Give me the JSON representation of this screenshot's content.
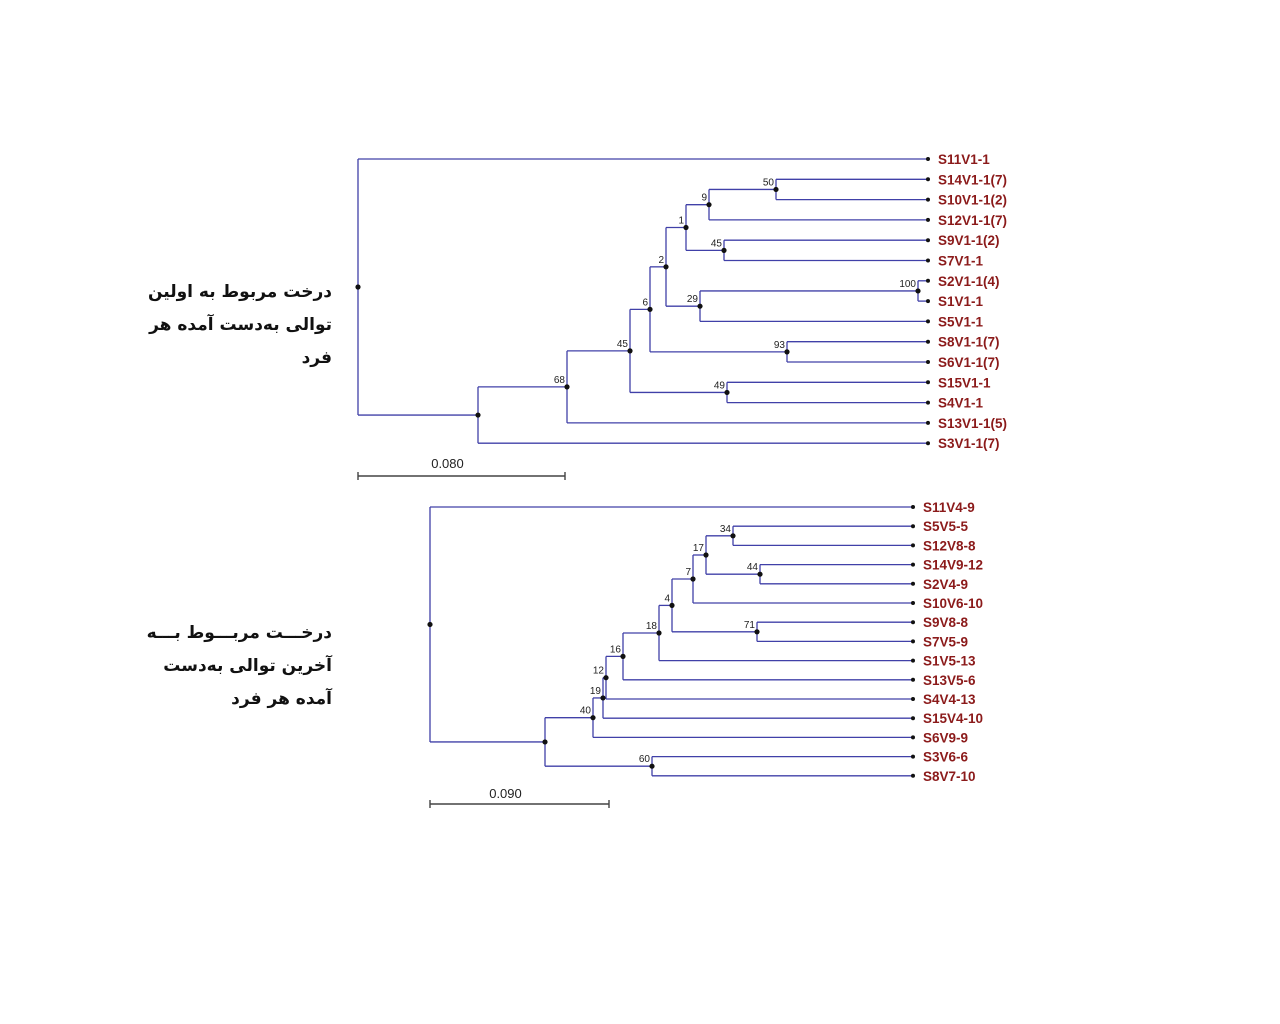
{
  "style": {
    "branch_color": "#4040a8",
    "leaf_label_color": "#8b1a1a",
    "node_color": "#111111",
    "scale_color": "#444444",
    "caption_color": "#111111"
  },
  "trees": [
    {
      "caption_lines": [
        "درخت مربوط به اولین",
        "توالی به‌دست آمده هر",
        "فرد"
      ],
      "scale_label": "0.080",
      "tree": {
        "children": [
          {
            "label": "S11V1-1"
          },
          {
            "children": [
              {
                "bootstrap": "68",
                "children": [
                  {
                    "bootstrap": "45",
                    "children": [
                      {
                        "bootstrap": "6",
                        "children": [
                          {
                            "bootstrap": "2",
                            "children": [
                              {
                                "bootstrap": "1",
                                "children": [
                                  {
                                    "bootstrap": "9",
                                    "children": [
                                      {
                                        "bootstrap": "50",
                                        "children": [
                                          {
                                            "label": "S14V1-1(7)"
                                          },
                                          {
                                            "label": "S10V1-1(2)"
                                          }
                                        ]
                                      },
                                      {
                                        "label": "S12V1-1(7)"
                                      }
                                    ]
                                  },
                                  {
                                    "bootstrap": "45",
                                    "children": [
                                      {
                                        "label": "S9V1-1(2)"
                                      },
                                      {
                                        "label": "S7V1-1"
                                      }
                                    ]
                                  }
                                ]
                              },
                              {
                                "bootstrap": "29",
                                "children": [
                                  {
                                    "bootstrap": "100",
                                    "children": [
                                      {
                                        "label": "S2V1-1(4)"
                                      },
                                      {
                                        "label": "S1V1-1"
                                      }
                                    ]
                                  },
                                  {
                                    "label": "S5V1-1"
                                  }
                                ]
                              }
                            ]
                          },
                          {
                            "bootstrap": "93",
                            "children": [
                              {
                                "label": "S8V1-1(7)"
                              },
                              {
                                "label": "S6V1-1(7)"
                              }
                            ]
                          }
                        ]
                      },
                      {
                        "bootstrap": "49",
                        "children": [
                          {
                            "label": "S15V1-1"
                          },
                          {
                            "label": "S4V1-1"
                          }
                        ]
                      }
                    ]
                  },
                  {
                    "label": "S13V1-1(5)"
                  }
                ]
              },
              {
                "label": "S3V1-1(7)"
              }
            ]
          }
        ]
      }
    },
    {
      "caption_lines": [
        "درخـــت مربـــوط بـــه",
        "آخرین  توالی  به‌دست",
        "آمده هر فرد"
      ],
      "scale_label": "0.090",
      "tree": {
        "children": [
          {
            "label": "S11V4-9"
          },
          {
            "children": [
              {
                "bootstrap": "40",
                "children": [
                  {
                    "bootstrap": "19",
                    "children": [
                      {
                        "bootstrap": "12",
                        "children": [
                          {
                            "bootstrap": "16",
                            "children": [
                              {
                                "bootstrap": "18",
                                "children": [
                                  {
                                    "bootstrap": "4",
                                    "children": [
                                      {
                                        "bootstrap": "7",
                                        "children": [
                                          {
                                            "bootstrap": "17",
                                            "children": [
                                              {
                                                "bootstrap": "34",
                                                "children": [
                                                  {
                                                    "label": "S5V5-5"
                                                  },
                                                  {
                                                    "label": "S12V8-8"
                                                  }
                                                ]
                                              },
                                              {
                                                "bootstrap": "44",
                                                "children": [
                                                  {
                                                    "label": "S14V9-12"
                                                  },
                                                  {
                                                    "label": "S2V4-9"
                                                  }
                                                ]
                                              }
                                            ]
                                          },
                                          {
                                            "label": "S10V6-10"
                                          }
                                        ]
                                      },
                                      {
                                        "bootstrap": "71",
                                        "children": [
                                          {
                                            "label": "S9V8-8"
                                          },
                                          {
                                            "label": "S7V5-9"
                                          }
                                        ]
                                      }
                                    ]
                                  },
                                  {
                                    "label": "S1V5-13"
                                  }
                                ]
                              },
                              {
                                "label": "S13V5-6"
                              }
                            ]
                          },
                          {
                            "label": "S4V4-13"
                          }
                        ]
                      },
                      {
                        "label": "S15V4-10"
                      }
                    ]
                  },
                  {
                    "label": "S6V9-9"
                  }
                ]
              },
              {
                "bootstrap": "60",
                "children": [
                  {
                    "label": "S3V6-6"
                  },
                  {
                    "label": "S8V7-10"
                  }
                ]
              }
            ]
          }
        ]
      }
    }
  ]
}
